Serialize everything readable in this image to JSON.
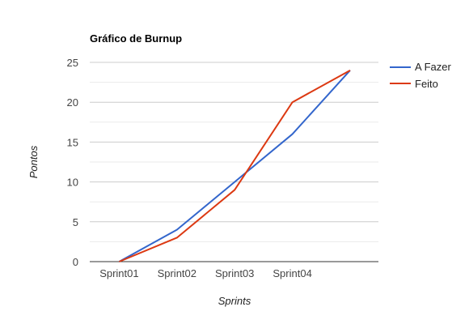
{
  "chart_data": {
    "type": "line",
    "title": "Gráfico de Burnup",
    "xlabel": "Sprints",
    "ylabel": "Pontos",
    "categories": [
      "",
      "Sprint01",
      "Sprint02",
      "Sprint03",
      "Sprint04",
      ""
    ],
    "ylim": [
      0,
      25
    ],
    "yticks": [
      0,
      5,
      10,
      15,
      20,
      25
    ],
    "grid": true,
    "legend_position": "right",
    "series": [
      {
        "name": "A Fazer",
        "color": "#3366cc",
        "values": [
          null,
          0,
          4,
          10,
          16,
          24
        ]
      },
      {
        "name": "Feito",
        "color": "#dc3912",
        "values": [
          null,
          0,
          3,
          9,
          20,
          24
        ]
      }
    ]
  }
}
